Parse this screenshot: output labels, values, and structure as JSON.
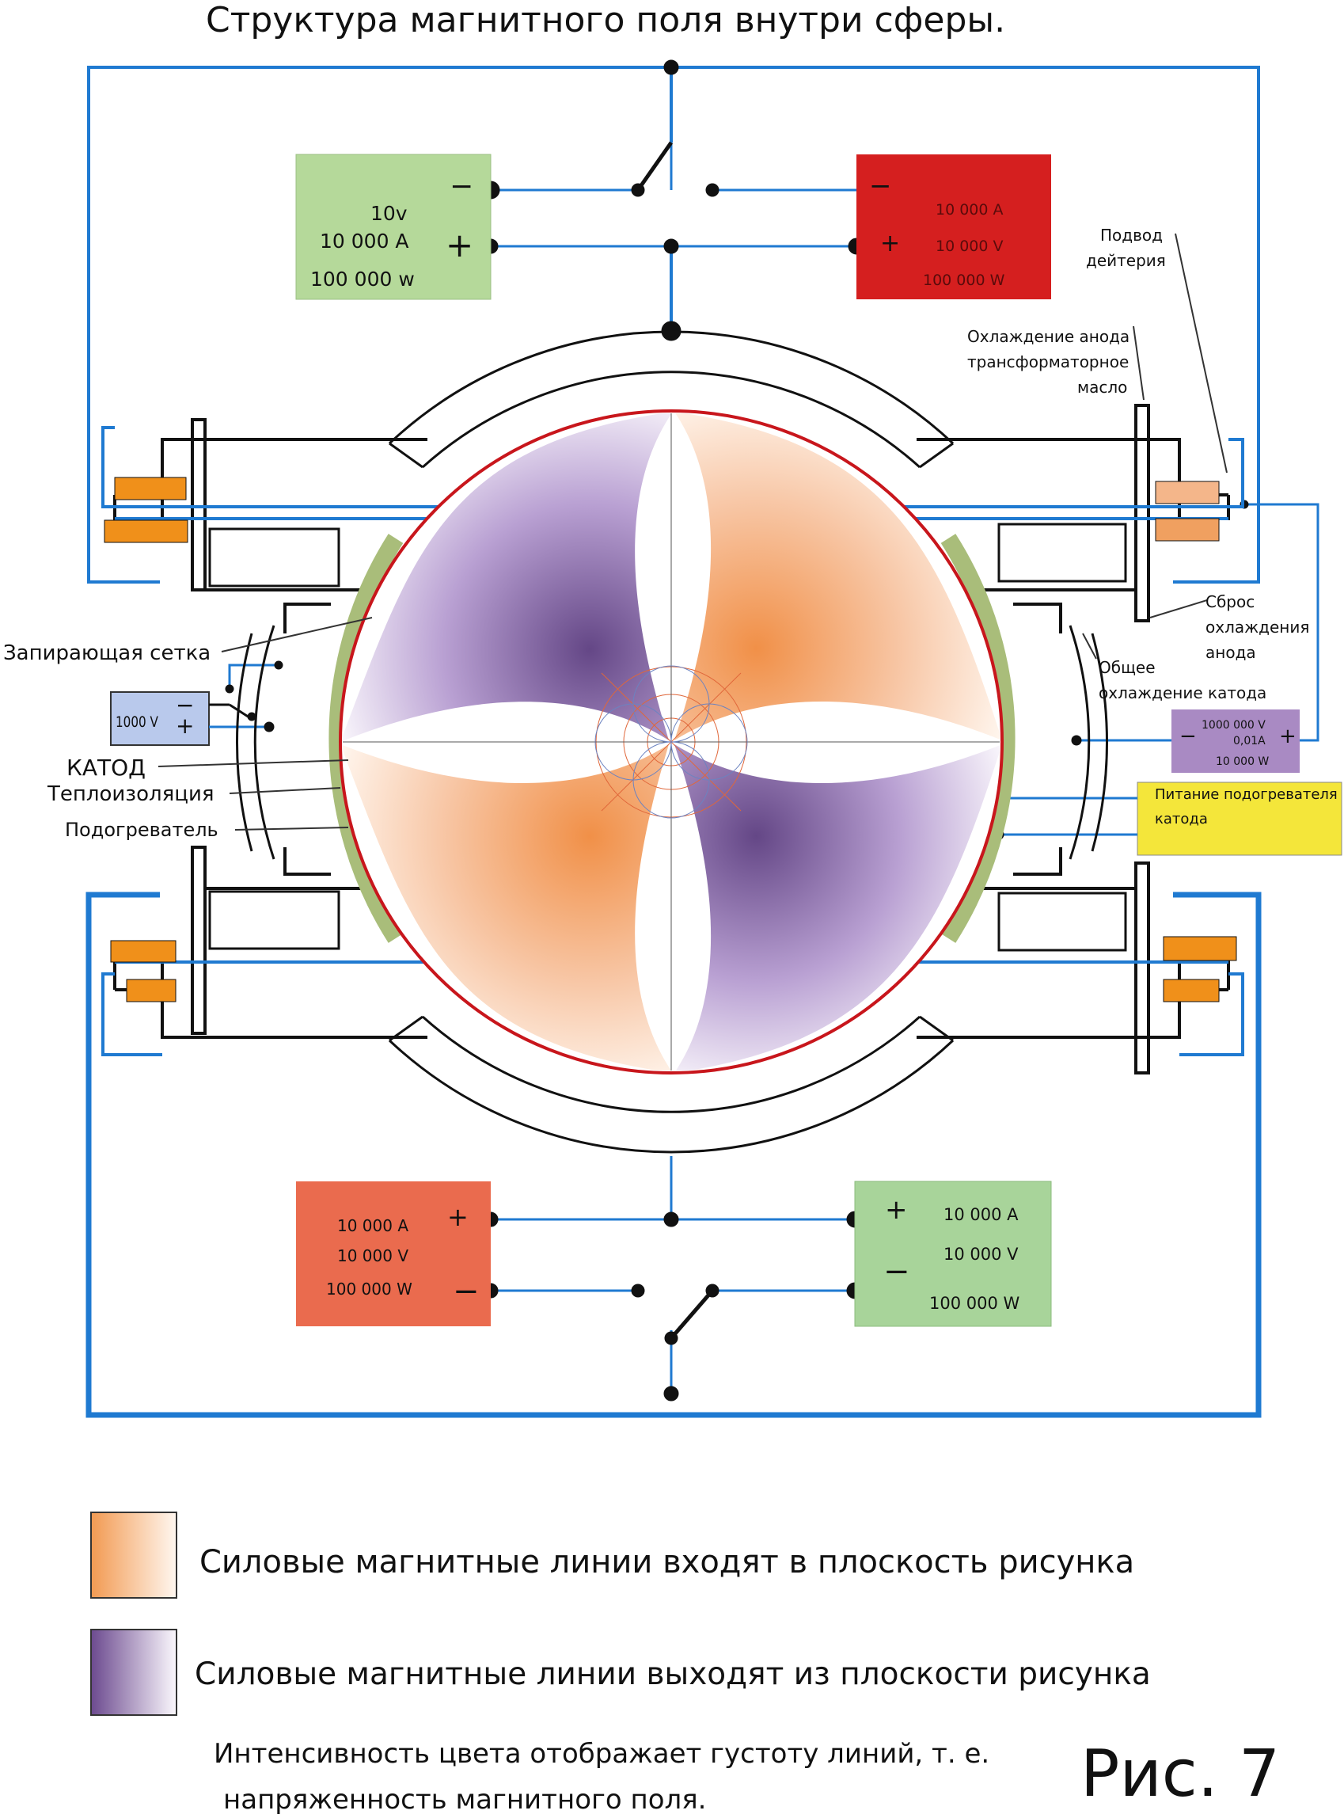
{
  "title": "Структура магнитного поля внутри сферы.",
  "colors": {
    "wire_blue": "#1f7ad1",
    "green_box": "#b5d99a",
    "red_box": "#d51f1f",
    "orange_box": "#ea6b4e",
    "purple_box": "#a98ac3",
    "lightblue_box": "#b9c9ec",
    "yellow_box": "#f4e63a",
    "orange_field": "#f29a52",
    "purple_field": "#6c4a8f",
    "coil_orange": "#f0901a"
  },
  "top_left_source": {
    "minus": "−",
    "plus": "+",
    "line1": "10v",
    "line2": "10 000 A",
    "line3": "100 000 w"
  },
  "top_right_source": {
    "minus": "−",
    "plus": "+",
    "line1": "10 000 A",
    "line2": "10 000 V",
    "line3": "100 000 W"
  },
  "bottom_left_source": {
    "plus": "+",
    "minus": "−",
    "line1": "10 000 A",
    "line2": "10 000 V",
    "line3": "100 000 W"
  },
  "bottom_right_source": {
    "plus": "+",
    "minus": "−",
    "line1": "10 000 A",
    "line2": "10 000 V",
    "line3": "100 000 W"
  },
  "grid_source": {
    "label": "1000 V",
    "minus": "−",
    "plus": "+"
  },
  "anode_source": {
    "minus": "−",
    "plus": "+",
    "line1": "1000 000 V",
    "line2": "0,01A",
    "line3": "10 000 W"
  },
  "heater_power": {
    "line1": "Питание подогревателя",
    "line2": "катода"
  },
  "labels": {
    "deuterium_1": "Подвод",
    "deuterium_2": "дейтерия",
    "anode_cool_1": "Охлаждение анода",
    "anode_cool_2": "трансформаторное",
    "anode_cool_3": "масло",
    "reset_1": "Сброс",
    "reset_2": "охлаждения",
    "reset_3": "анода",
    "cathode_cool_1": "Общее",
    "cathode_cool_2": "охлаждение катода",
    "locking_grid": "Запирающая сетка",
    "cathode": "КАТОД",
    "thermal_insulation": "Теплоизоляция",
    "heater": "Подогреватель"
  },
  "legend": {
    "incoming": "Силовые магнитные линии входят в плоскость рисунка",
    "outgoing": "Силовые магнитные линии выходят из плоскости рисунка"
  },
  "note_line1": "Интенсивность цвета отображает густоту линий, т. е.",
  "note_line2": "напряженность магнитного поля.",
  "figure_label": "Рис. 7"
}
